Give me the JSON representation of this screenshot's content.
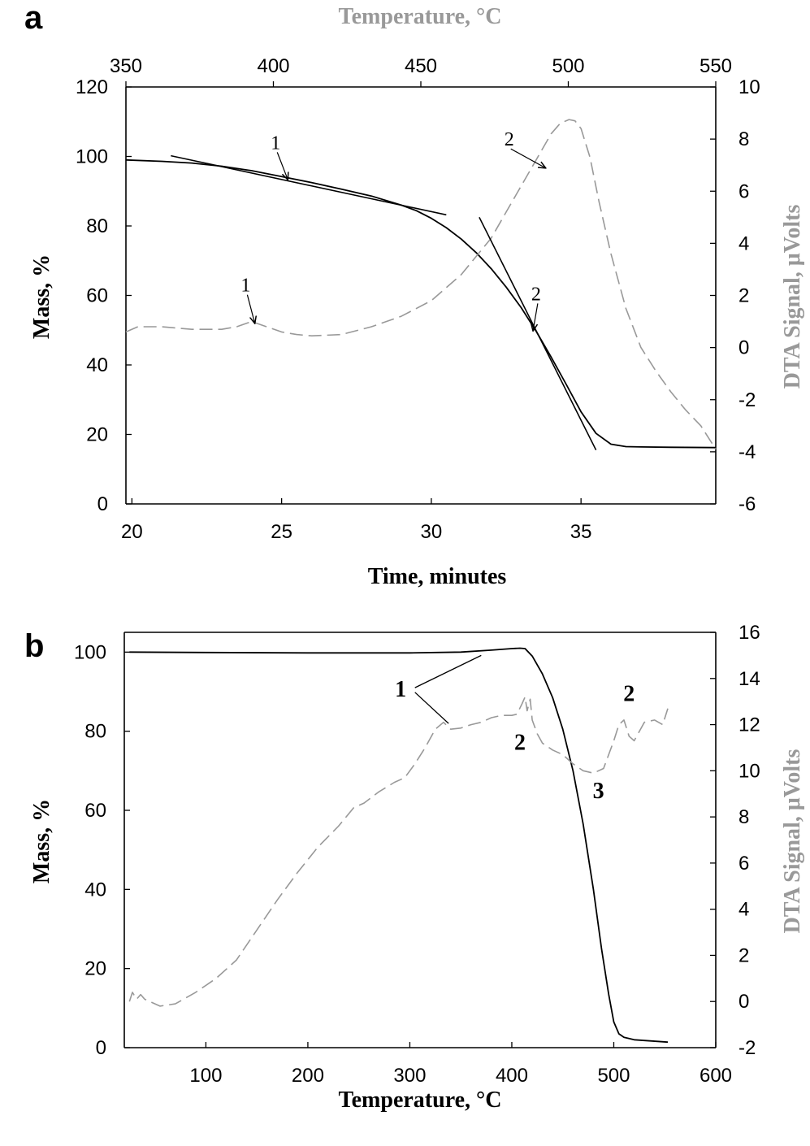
{
  "colors": {
    "mass": "#000000",
    "dta": "#999999",
    "axis": "#000000"
  },
  "chart_data": [
    {
      "panel": "a",
      "type": "line",
      "xlabel": "Time, minutes",
      "xlim": [
        19.8,
        39.5
      ],
      "x_ticks": [
        "20",
        "25",
        "30",
        "35"
      ],
      "x2label": "Temperature, °C",
      "x2lim": [
        350,
        550
      ],
      "x2_ticks": [
        "350",
        "400",
        "450",
        "500",
        "550"
      ],
      "ylabel": "Mass, %",
      "ylim": [
        0,
        120
      ],
      "y_ticks": [
        "0",
        "20",
        "40",
        "60",
        "80",
        "100",
        "120"
      ],
      "y2label": "DTA Signal, μVolts",
      "y2lim": [
        -6,
        10
      ],
      "y2_ticks": [
        "-6",
        "-4",
        "-2",
        "0",
        "2",
        "4",
        "6",
        "8",
        "10"
      ],
      "series": [
        {
          "axis": "left",
          "style": "solid",
          "color": "#000000",
          "x": [
            19.8,
            21,
            22,
            23,
            24,
            25,
            26,
            27,
            28,
            29,
            29.5,
            30,
            30.5,
            31,
            31.5,
            32,
            32.5,
            33,
            33.5,
            34,
            34.5,
            35,
            35.5,
            36,
            36.5,
            37,
            38,
            39.5
          ],
          "y": [
            99,
            98.6,
            98.1,
            97.2,
            95.9,
            94.2,
            92.5,
            90.6,
            88.6,
            86.0,
            84.4,
            82.2,
            79.5,
            76.2,
            72.3,
            67.7,
            62.4,
            56.5,
            49.7,
            42.3,
            34.5,
            26.5,
            20.3,
            17.2,
            16.5,
            16.4,
            16.3,
            16.2
          ]
        },
        {
          "axis": "right",
          "style": "dashed",
          "color": "#999999",
          "x": [
            19.8,
            20.2,
            20.6,
            21,
            22,
            23,
            23.5,
            24,
            24.5,
            25,
            25.5,
            26,
            27,
            28,
            29,
            30,
            31,
            32,
            32.5,
            33,
            33.5,
            34,
            34.3,
            34.6,
            34.8,
            35,
            35.3,
            35.6,
            36,
            36.5,
            37,
            37.5,
            38,
            38.5,
            39,
            39.5
          ],
          "y": [
            0.6,
            0.8,
            0.8,
            0.8,
            0.7,
            0.7,
            0.8,
            1.0,
            0.8,
            0.6,
            0.5,
            0.45,
            0.5,
            0.8,
            1.2,
            1.8,
            2.8,
            4.2,
            5.2,
            6.2,
            7.2,
            8.2,
            8.6,
            8.75,
            8.7,
            8.4,
            7.3,
            5.6,
            3.6,
            1.5,
            0.0,
            -0.9,
            -1.7,
            -2.4,
            -3.0,
            -3.9
          ]
        },
        {
          "axis": "left",
          "style": "solid",
          "color": "#000000",
          "role": "tangent",
          "x": [
            21.3,
            30.5
          ],
          "y": [
            100.2,
            83.2
          ]
        },
        {
          "axis": "left",
          "style": "solid",
          "color": "#000000",
          "role": "tangent",
          "x": [
            31.6,
            35.5
          ],
          "y": [
            82.5,
            15.5
          ]
        }
      ],
      "annotations": [
        {
          "text": "1",
          "tx": 24.8,
          "ty": 104,
          "ax": 25.2,
          "ay": 93.5,
          "axis": "left"
        },
        {
          "text": "2",
          "tx": 33.5,
          "ty": 60.5,
          "ax": 33.4,
          "ay": 50.0,
          "axis": "left"
        },
        {
          "text": "1",
          "tx": 23.8,
          "ty": 2.4,
          "ax": 24.1,
          "ay": 0.95,
          "axis": "right"
        },
        {
          "text": "2",
          "tx": 32.6,
          "ty": 8.0,
          "ax": 33.8,
          "ay": 6.9,
          "axis": "right"
        }
      ]
    },
    {
      "panel": "b",
      "type": "line",
      "xlabel": "Temperature, °C",
      "xlim": [
        20,
        600
      ],
      "x_ticks": [
        "100",
        "200",
        "300",
        "400",
        "500",
        "600"
      ],
      "ylabel": "Mass, %",
      "ylim": [
        0,
        105
      ],
      "y_ticks": [
        "0",
        "20",
        "40",
        "60",
        "80",
        "100"
      ],
      "y2label": "DTA Signal, μVolts",
      "y2lim": [
        -2,
        16
      ],
      "y2_ticks": [
        "-2",
        "0",
        "2",
        "4",
        "6",
        "8",
        "10",
        "12",
        "14",
        "16"
      ],
      "series": [
        {
          "axis": "left",
          "style": "solid",
          "color": "#000000",
          "x": [
            25,
            100,
            200,
            300,
            350,
            380,
            400,
            408,
            413,
            420,
            430,
            440,
            450,
            460,
            470,
            480,
            488,
            495,
            500,
            505,
            510,
            515,
            520,
            530,
            553
          ],
          "y": [
            100,
            99.9,
            99.8,
            99.8,
            100.0,
            100.5,
            100.9,
            101.0,
            100.9,
            99.0,
            94.5,
            88.5,
            80.5,
            70.0,
            56.5,
            40.0,
            25.0,
            13.5,
            6.5,
            3.5,
            2.6,
            2.3,
            2.0,
            1.8,
            1.4
          ]
        },
        {
          "axis": "right",
          "style": "dashed",
          "color": "#999999",
          "x": [
            25,
            28,
            32,
            36,
            40,
            55,
            70,
            90,
            110,
            130,
            150,
            170,
            190,
            210,
            230,
            245,
            255,
            270,
            285,
            295,
            305,
            315,
            325,
            333,
            340,
            350,
            360,
            370,
            380,
            390,
            400,
            405,
            410,
            413,
            415,
            418,
            420,
            425,
            430,
            440,
            450,
            460,
            470,
            480,
            490,
            500,
            505,
            510,
            515,
            520,
            530,
            540,
            548,
            553
          ],
          "y": [
            0.0,
            0.4,
            0.1,
            0.3,
            0.1,
            -0.2,
            -0.1,
            0.4,
            1.0,
            1.8,
            3.1,
            4.4,
            5.6,
            6.7,
            7.6,
            8.4,
            8.6,
            9.1,
            9.5,
            9.7,
            10.3,
            11.0,
            11.8,
            12.1,
            11.8,
            11.85,
            12.0,
            12.1,
            12.3,
            12.4,
            12.4,
            12.45,
            12.9,
            13.2,
            12.6,
            13.1,
            12.2,
            11.6,
            11.2,
            10.9,
            10.7,
            10.3,
            10.0,
            9.9,
            10.1,
            11.3,
            12.0,
            12.2,
            11.5,
            11.3,
            12.1,
            12.2,
            12.0,
            12.7
          ]
        }
      ],
      "annotations": [
        {
          "text": "1",
          "tx": 291,
          "ty": 13.5,
          "bold": true
        },
        {
          "text": "2",
          "tx": 408,
          "ty": 11.2,
          "bold": true
        },
        {
          "text": "3",
          "tx": 485,
          "ty": 9.1,
          "bold": true
        },
        {
          "text": "2",
          "tx": 515,
          "ty": 13.3,
          "bold": true
        }
      ],
      "leaders": [
        {
          "x": [
            305,
            370
          ],
          "y": [
            13.6,
            15.0
          ]
        },
        {
          "x": [
            305,
            338
          ],
          "y": [
            13.4,
            12.05
          ]
        }
      ]
    }
  ]
}
